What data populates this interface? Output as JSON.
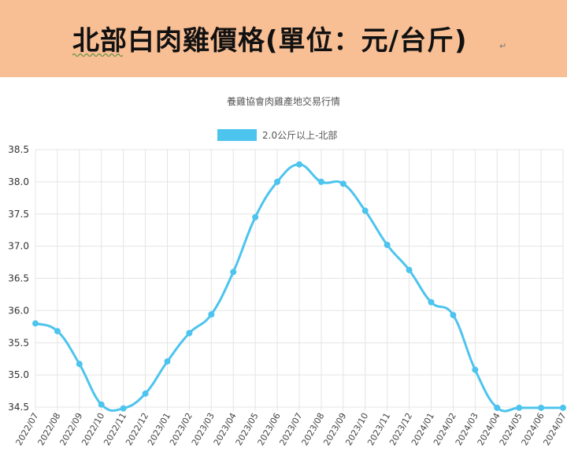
{
  "banner": {
    "title": "北部白肉雞價格(單位：元/台斤)",
    "paragraph_mark": "↵"
  },
  "colors": {
    "banner_bg": "#f8be94",
    "series_line": "#4dc4ee",
    "grid": "#e4e4e4"
  },
  "chart_data": {
    "type": "line",
    "title": "養雞協會肉雞產地交易行情",
    "legend_position": "top-center",
    "grid": true,
    "x": [
      "2022/07",
      "2022/08",
      "2022/09",
      "2022/10",
      "2022/11",
      "2022/12",
      "2023/01",
      "2023/02",
      "2023/03",
      "2023/04",
      "2023/05",
      "2023/06",
      "2023/07",
      "2023/08",
      "2023/09",
      "2023/10",
      "2023/11",
      "2023/12",
      "2024/01",
      "2024/02",
      "2024/03",
      "2024/04",
      "2024/05",
      "2024/06",
      "2024/07"
    ],
    "series": [
      {
        "name": "2.0公斤以上-北部",
        "values": [
          35.8,
          35.68,
          35.17,
          34.54,
          34.48,
          34.71,
          35.21,
          35.65,
          35.94,
          36.6,
          37.45,
          38.0,
          38.27,
          38.0,
          37.97,
          37.55,
          37.02,
          36.63,
          36.13,
          35.93,
          35.08,
          34.49,
          34.49,
          34.49,
          34.49
        ]
      }
    ],
    "ylim": [
      34.5,
      38.5
    ],
    "yticks": [
      38.5,
      38.0,
      37.5,
      37.0,
      36.5,
      36.0,
      35.5,
      35.0,
      34.5
    ]
  }
}
